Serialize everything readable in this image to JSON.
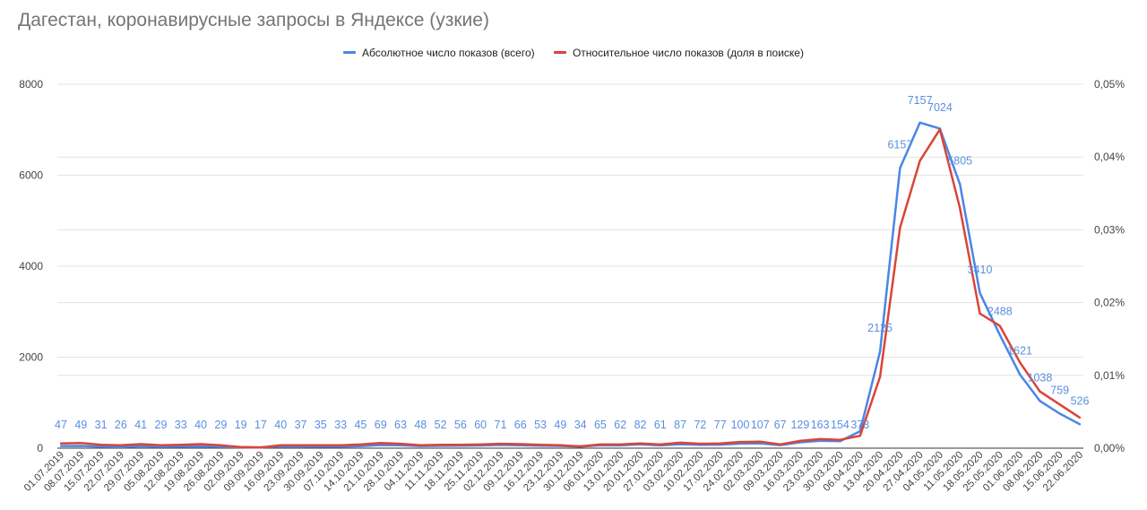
{
  "chart_data": {
    "type": "line",
    "title": "Дагестан, коронавирусные запросы в Яндексе (узкие)",
    "legend_position": "top",
    "grid": true,
    "categories": [
      "01.07.2019",
      "08.07.2019",
      "15.07.2019",
      "22.07.2019",
      "29.07.2019",
      "05.08.2019",
      "12.08.2019",
      "19.08.2019",
      "26.08.2019",
      "02.09.2019",
      "09.09.2019",
      "16.09.2019",
      "23.09.2019",
      "30.09.2019",
      "07.10.2019",
      "14.10.2019",
      "21.10.2019",
      "28.10.2019",
      "04.11.2019",
      "11.11.2019",
      "18.11.2019",
      "25.11.2019",
      "02.12.2019",
      "09.12.2019",
      "16.12.2019",
      "23.12.2019",
      "30.12.2019",
      "06.01.2020",
      "13.01.2020",
      "20.01.2020",
      "27.01.2020",
      "03.02.2020",
      "10.02.2020",
      "17.02.2020",
      "24.02.2020",
      "02.03.2020",
      "09.03.2020",
      "16.03.2020",
      "23.03.2020",
      "30.03.2020",
      "06.04.2020",
      "13.04.2020",
      "20.04.2020",
      "27.04.2020",
      "04.05.2020",
      "11.05.2020",
      "18.05.2020",
      "25.05.2020",
      "01.06.2020",
      "08.06.2020",
      "15.06.2020",
      "22.06.2020"
    ],
    "y_left": {
      "ylim": [
        0,
        8000
      ],
      "ticks": [
        "0",
        "2000",
        "4000",
        "6000",
        "8000"
      ]
    },
    "y_right": {
      "ylim": [
        0,
        0.05
      ],
      "ticks": [
        "0,00%",
        "0,01%",
        "0,02%",
        "0,03%",
        "0,04%",
        "0,05%"
      ]
    },
    "series": [
      {
        "name": "Абсолютное число показов (всего)",
        "axis": "left",
        "color": "#4a86e8",
        "values": [
          47,
          49,
          31,
          26,
          41,
          29,
          33,
          40,
          29,
          19,
          17,
          40,
          37,
          35,
          33,
          45,
          69,
          63,
          48,
          52,
          56,
          60,
          71,
          66,
          53,
          49,
          34,
          65,
          62,
          82,
          61,
          87,
          72,
          77,
          100,
          107,
          67,
          129,
          163,
          154,
          373,
          2125,
          6157,
          7157,
          7024,
          5805,
          3410,
          2488,
          1621,
          1038,
          759,
          526
        ],
        "labels": [
          "47",
          "49",
          "31",
          "26",
          "41",
          "29",
          "33",
          "40",
          "29",
          "19",
          "17",
          "40",
          "37",
          "35",
          "33",
          "45",
          "69",
          "63",
          "48",
          "52",
          "56",
          "60",
          "71",
          "66",
          "53",
          "49",
          "34",
          "65",
          "62",
          "82",
          "61",
          "87",
          "72",
          "77",
          "100",
          "107",
          "67",
          "129",
          "163",
          "154",
          "373",
          "2125",
          "6157",
          "7157",
          "7024",
          "5805",
          "3410",
          "2488",
          "1621",
          "1038",
          "759",
          "526"
        ]
      },
      {
        "name": "Относительное число показов (доля в поиске)",
        "axis": "right",
        "color": "#db4437",
        "values": [
          0.00065,
          0.0007,
          0.00045,
          0.0004,
          0.00055,
          0.0004,
          0.00045,
          0.00055,
          0.0004,
          0.00015,
          0.0001,
          0.0004,
          0.0004,
          0.0004,
          0.0004,
          0.0005,
          0.0007,
          0.0006,
          0.0004,
          0.00045,
          0.00045,
          0.0005,
          0.0006,
          0.00055,
          0.00045,
          0.0004,
          0.00025,
          0.0005,
          0.0005,
          0.00065,
          0.0005,
          0.00075,
          0.0006,
          0.00065,
          0.00085,
          0.0009,
          0.0005,
          0.001,
          0.00125,
          0.00115,
          0.0017,
          0.0098,
          0.0303,
          0.0395,
          0.0438,
          0.033,
          0.0185,
          0.0168,
          0.0118,
          0.0078,
          0.006,
          0.0042
        ]
      }
    ]
  }
}
